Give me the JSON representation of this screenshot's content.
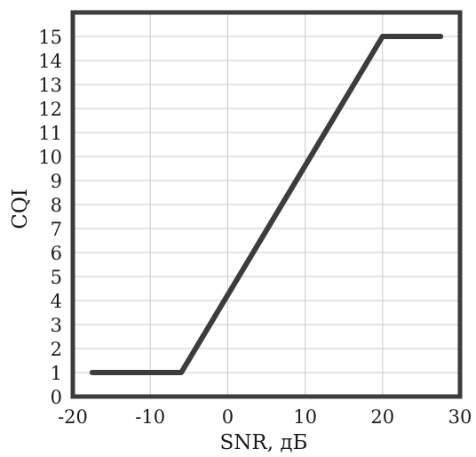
{
  "chart_data": {
    "type": "line",
    "xlabel": "SNR, дБ",
    "ylabel": "CQI",
    "xlim": [
      -20,
      30
    ],
    "ylim": [
      0,
      16
    ],
    "xticks": [
      -20,
      -10,
      0,
      10,
      20,
      30
    ],
    "yticks": [
      0,
      1,
      2,
      3,
      4,
      5,
      6,
      7,
      8,
      9,
      10,
      11,
      12,
      13,
      14,
      15
    ],
    "grid": true,
    "legend": "none",
    "series": [
      {
        "color": "#3c3c3c",
        "x": [
          -17.5,
          -6,
          20,
          27.5
        ],
        "y": [
          1,
          1,
          15,
          15
        ]
      }
    ]
  }
}
